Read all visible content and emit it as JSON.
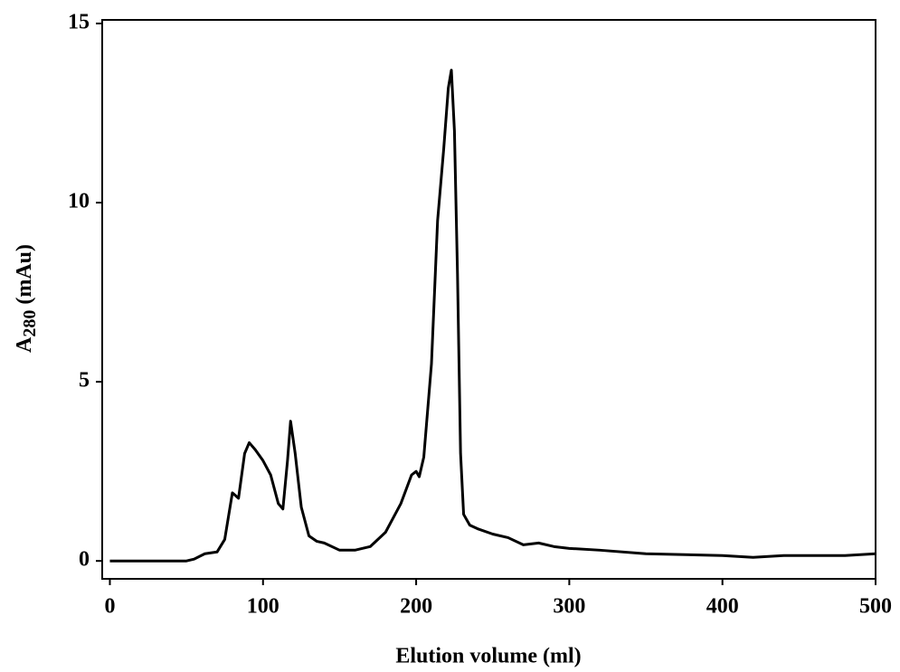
{
  "chart_data": {
    "type": "line",
    "xlabel": "Elution volume (ml)",
    "ylabel": [
      "A",
      "280",
      " (mAu)"
    ],
    "xlim": [
      -5,
      500
    ],
    "ylim": [
      -0.5,
      15.1
    ],
    "xticks": [
      0,
      100,
      200,
      300,
      400,
      500
    ],
    "yticks": [
      0,
      5,
      10,
      15
    ],
    "series": [
      {
        "color": "#000000",
        "x": [
          0,
          20,
          50,
          55,
          62,
          70,
          75,
          80,
          84,
          88,
          91,
          95,
          100,
          105,
          110,
          113,
          116,
          118,
          121,
          125,
          130,
          135,
          140,
          150,
          160,
          170,
          180,
          190,
          197,
          200,
          202,
          205,
          210,
          214,
          218,
          221,
          223,
          225,
          227,
          229,
          231,
          235,
          240,
          250,
          260,
          270,
          280,
          290,
          300,
          320,
          350,
          400,
          420,
          440,
          460,
          480,
          500
        ],
        "values": [
          0.0,
          0.0,
          0.0,
          0.05,
          0.2,
          0.25,
          0.6,
          1.9,
          1.75,
          3.0,
          3.3,
          3.1,
          2.8,
          2.4,
          1.6,
          1.45,
          2.8,
          3.9,
          3.0,
          1.5,
          0.7,
          0.55,
          0.5,
          0.3,
          0.3,
          0.4,
          0.8,
          1.6,
          2.4,
          2.5,
          2.35,
          2.9,
          5.5,
          9.5,
          11.5,
          13.2,
          13.7,
          12.0,
          8.0,
          3.0,
          1.3,
          1.0,
          0.9,
          0.75,
          0.65,
          0.45,
          0.5,
          0.4,
          0.35,
          0.3,
          0.2,
          0.15,
          0.1,
          0.15,
          0.15,
          0.15,
          0.2
        ]
      }
    ]
  }
}
